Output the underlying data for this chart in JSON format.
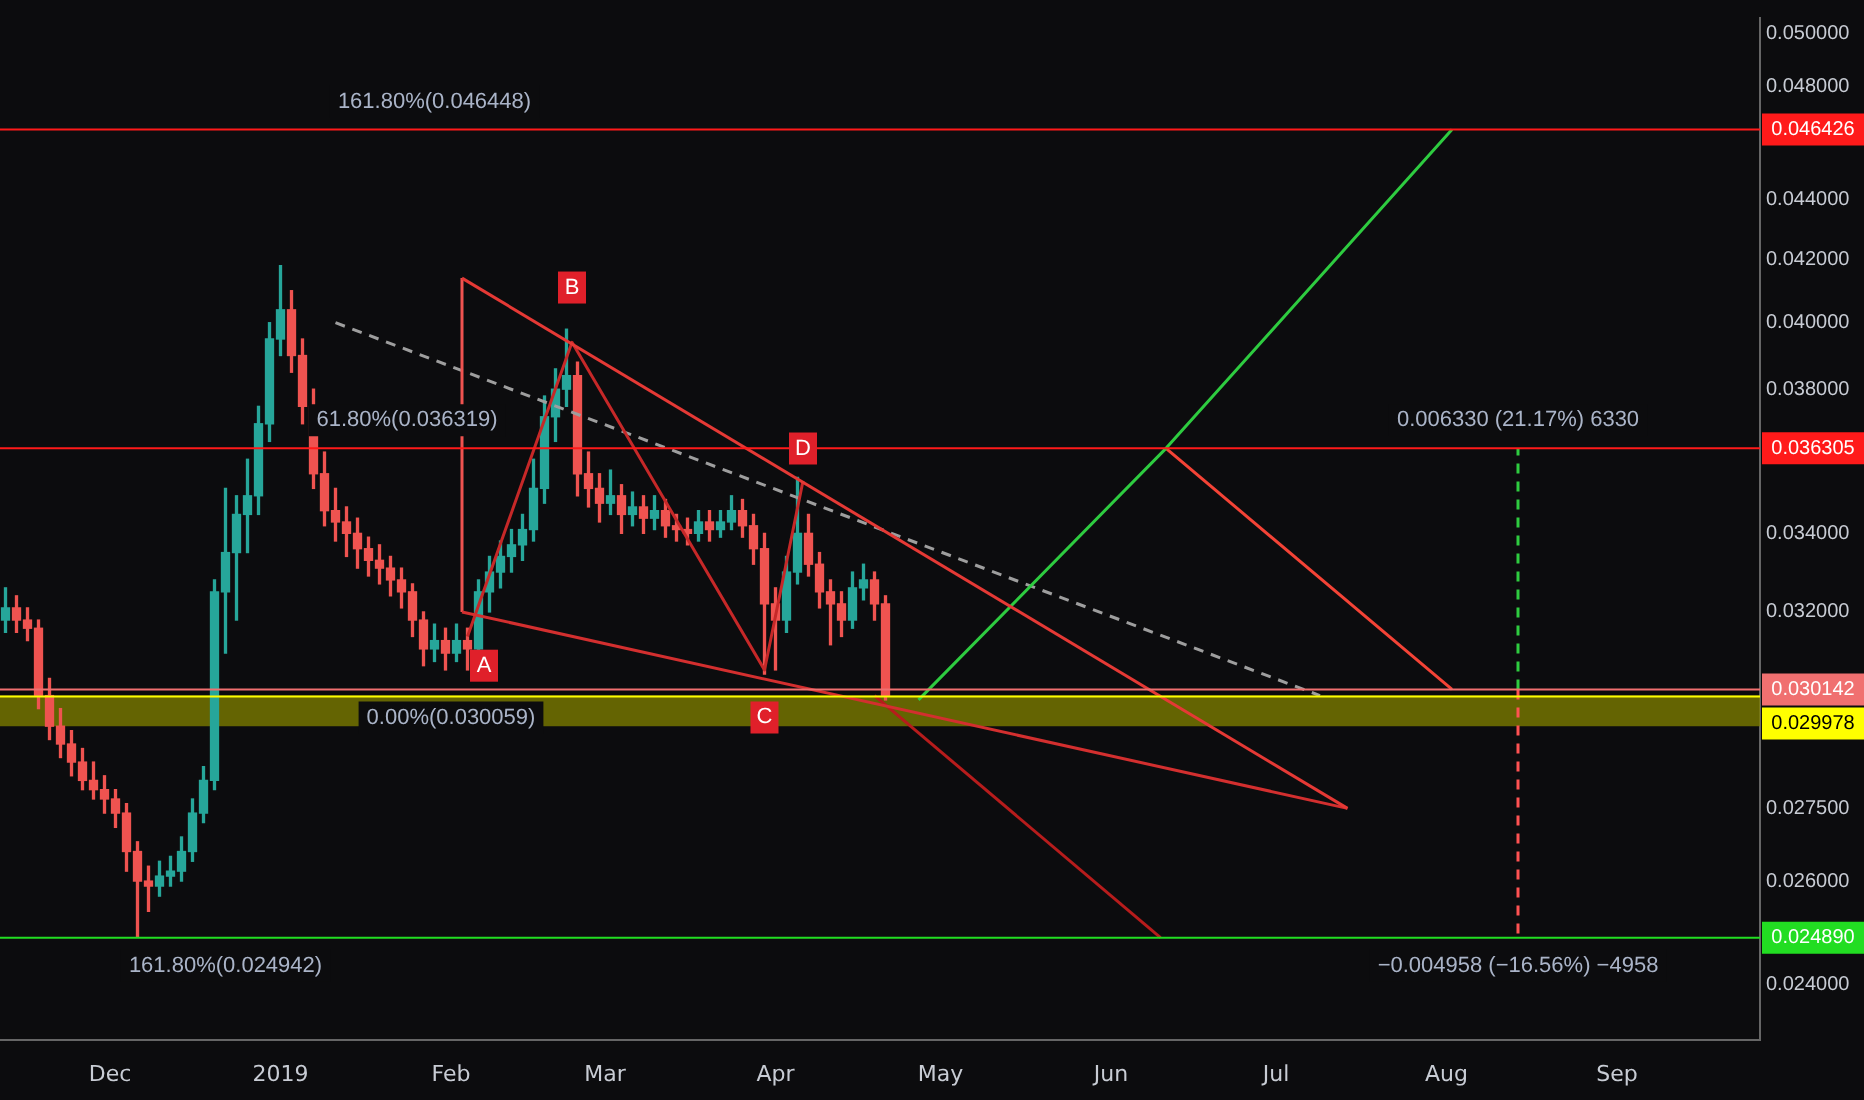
{
  "chart_data": {
    "type": "candlestick",
    "log": true,
    "xlim": [
      "2018-11-11",
      "2019-09-27"
    ],
    "xticks": [
      {
        "value": "2018-12-01",
        "label": "Dec"
      },
      {
        "value": "2019-01-01",
        "label": "2019"
      },
      {
        "value": "2019-02-01",
        "label": "Feb"
      },
      {
        "value": "2019-03-01",
        "label": "Mar"
      },
      {
        "value": "2019-04-01",
        "label": "Apr"
      },
      {
        "value": "2019-05-01",
        "label": "May"
      },
      {
        "value": "2019-06-01",
        "label": "Jun"
      },
      {
        "value": "2019-07-01",
        "label": "Jul"
      },
      {
        "value": "2019-08-01",
        "label": "Aug"
      },
      {
        "value": "2019-09-01",
        "label": "Sep"
      }
    ],
    "ylim": [
      0.023,
      0.0506
    ],
    "yticks": [
      {
        "value": 0.024,
        "label": "0.024000"
      },
      {
        "value": 0.026,
        "label": "0.026000"
      },
      {
        "value": 0.0275,
        "label": "0.027500"
      },
      {
        "value": 0.032,
        "label": "0.032000"
      },
      {
        "value": 0.034,
        "label": "0.034000"
      },
      {
        "value": 0.038,
        "label": "0.038000"
      },
      {
        "value": 0.04,
        "label": "0.040000"
      },
      {
        "value": 0.042,
        "label": "0.042000"
      },
      {
        "value": 0.044,
        "label": "0.044000"
      },
      {
        "value": 0.048,
        "label": "0.048000"
      },
      {
        "value": 0.05,
        "label": "0.050000"
      }
    ],
    "series": [
      {
        "x": [
          "2018-11-12",
          "2018-11-14",
          "2018-11-16",
          "2018-11-18",
          "2018-11-20",
          "2018-11-22",
          "2018-11-24",
          "2018-11-26",
          "2018-11-28",
          "2018-11-30",
          "2018-12-02",
          "2018-12-04",
          "2018-12-06",
          "2018-12-08",
          "2018-12-10",
          "2018-12-12",
          "2018-12-14",
          "2018-12-16",
          "2018-12-18",
          "2018-12-20",
          "2018-12-22",
          "2018-12-24",
          "2018-12-26",
          "2018-12-28",
          "2018-12-30",
          "2019-01-01",
          "2019-01-03",
          "2019-01-05",
          "2019-01-07",
          "2019-01-09",
          "2019-01-11",
          "2019-01-13",
          "2019-01-15",
          "2019-01-17",
          "2019-01-19",
          "2019-01-21",
          "2019-01-23",
          "2019-01-25",
          "2019-01-27",
          "2019-01-29",
          "2019-01-31",
          "2019-02-02",
          "2019-02-04",
          "2019-02-06",
          "2019-02-08",
          "2019-02-10",
          "2019-02-12",
          "2019-02-14",
          "2019-02-16",
          "2019-02-18",
          "2019-02-20",
          "2019-02-22",
          "2019-02-24",
          "2019-02-26",
          "2019-02-28",
          "2019-03-02",
          "2019-03-04",
          "2019-03-06",
          "2019-03-08",
          "2019-03-10",
          "2019-03-12",
          "2019-03-14",
          "2019-03-16",
          "2019-03-18",
          "2019-03-20",
          "2019-03-22",
          "2019-03-24",
          "2019-03-26",
          "2019-03-28",
          "2019-03-30",
          "2019-04-01",
          "2019-04-03",
          "2019-04-05",
          "2019-04-07",
          "2019-04-09",
          "2019-04-11",
          "2019-04-13",
          "2019-04-15",
          "2019-04-17",
          "2019-04-19",
          "2019-04-21"
        ],
        "ohlc": [
          [
            0.0318,
            0.0326,
            0.0315,
            0.0321
          ],
          [
            0.0321,
            0.0324,
            0.0315,
            0.0318
          ],
          [
            0.0318,
            0.0321,
            0.0313,
            0.0316
          ],
          [
            0.0316,
            0.0318,
            0.0297,
            0.03
          ],
          [
            0.03,
            0.0304,
            0.029,
            0.0293
          ],
          [
            0.0293,
            0.0297,
            0.0286,
            0.0289
          ],
          [
            0.0289,
            0.0292,
            0.0282,
            0.0285
          ],
          [
            0.0285,
            0.0288,
            0.0279,
            0.0281
          ],
          [
            0.0281,
            0.0285,
            0.0277,
            0.0279
          ],
          [
            0.0279,
            0.0282,
            0.0274,
            0.0277
          ],
          [
            0.0277,
            0.0279,
            0.0271,
            0.0274
          ],
          [
            0.0274,
            0.0276,
            0.0262,
            0.0266
          ],
          [
            0.0266,
            0.0268,
            0.0249,
            0.026
          ],
          [
            0.026,
            0.0263,
            0.0254,
            0.0259
          ],
          [
            0.0259,
            0.0264,
            0.0257,
            0.0261
          ],
          [
            0.0261,
            0.0265,
            0.0259,
            0.0262
          ],
          [
            0.0262,
            0.0269,
            0.026,
            0.0266
          ],
          [
            0.0266,
            0.0277,
            0.0264,
            0.0274
          ],
          [
            0.0274,
            0.0284,
            0.0272,
            0.0281
          ],
          [
            0.0281,
            0.0328,
            0.0279,
            0.0325
          ],
          [
            0.0325,
            0.0352,
            0.031,
            0.0335
          ],
          [
            0.0335,
            0.035,
            0.0318,
            0.0345
          ],
          [
            0.0345,
            0.036,
            0.0335,
            0.035
          ],
          [
            0.035,
            0.0375,
            0.0345,
            0.037
          ],
          [
            0.037,
            0.04,
            0.0365,
            0.0395
          ],
          [
            0.0395,
            0.0418,
            0.039,
            0.0404
          ],
          [
            0.0404,
            0.041,
            0.0385,
            0.039
          ],
          [
            0.039,
            0.0395,
            0.037,
            0.0375
          ],
          [
            0.0375,
            0.038,
            0.0352,
            0.0356
          ],
          [
            0.0356,
            0.0362,
            0.0342,
            0.0346
          ],
          [
            0.0346,
            0.0352,
            0.0338,
            0.0343
          ],
          [
            0.0343,
            0.0347,
            0.0334,
            0.034
          ],
          [
            0.034,
            0.0344,
            0.0331,
            0.0336
          ],
          [
            0.0336,
            0.0339,
            0.0329,
            0.0333
          ],
          [
            0.0333,
            0.0337,
            0.0327,
            0.0331
          ],
          [
            0.0331,
            0.0334,
            0.0324,
            0.0328
          ],
          [
            0.0328,
            0.0331,
            0.0321,
            0.0325
          ],
          [
            0.0325,
            0.0327,
            0.0314,
            0.0318
          ],
          [
            0.0318,
            0.032,
            0.0307,
            0.0311
          ],
          [
            0.0311,
            0.0317,
            0.0308,
            0.0313
          ],
          [
            0.0313,
            0.0316,
            0.0306,
            0.031
          ],
          [
            0.031,
            0.0317,
            0.0308,
            0.0313
          ],
          [
            0.0313,
            0.0316,
            0.0306,
            0.0311
          ],
          [
            0.0311,
            0.0328,
            0.031,
            0.0325
          ],
          [
            0.0325,
            0.0334,
            0.032,
            0.033
          ],
          [
            0.033,
            0.0338,
            0.0326,
            0.0334
          ],
          [
            0.0334,
            0.0341,
            0.033,
            0.0337
          ],
          [
            0.0337,
            0.0345,
            0.0333,
            0.0341
          ],
          [
            0.0341,
            0.036,
            0.0338,
            0.0352
          ],
          [
            0.0352,
            0.0378,
            0.0348,
            0.0372
          ],
          [
            0.0372,
            0.0386,
            0.0365,
            0.038
          ],
          [
            0.038,
            0.0398,
            0.0375,
            0.0384
          ],
          [
            0.0384,
            0.0388,
            0.035,
            0.0356
          ],
          [
            0.0356,
            0.0362,
            0.0347,
            0.0352
          ],
          [
            0.0352,
            0.0356,
            0.0343,
            0.0348
          ],
          [
            0.0348,
            0.0357,
            0.0345,
            0.035
          ],
          [
            0.035,
            0.0353,
            0.034,
            0.0345
          ],
          [
            0.0345,
            0.0351,
            0.0342,
            0.0347
          ],
          [
            0.0347,
            0.035,
            0.034,
            0.0344
          ],
          [
            0.0344,
            0.035,
            0.0341,
            0.0346
          ],
          [
            0.0346,
            0.0349,
            0.0339,
            0.0342
          ],
          [
            0.0342,
            0.0345,
            0.0338,
            0.0341
          ],
          [
            0.0341,
            0.0344,
            0.0337,
            0.034
          ],
          [
            0.034,
            0.0346,
            0.0338,
            0.0343
          ],
          [
            0.0343,
            0.0346,
            0.0338,
            0.0341
          ],
          [
            0.0341,
            0.0346,
            0.0339,
            0.0343
          ],
          [
            0.0343,
            0.035,
            0.0341,
            0.0346
          ],
          [
            0.0346,
            0.0349,
            0.0339,
            0.0342
          ],
          [
            0.0342,
            0.0345,
            0.0332,
            0.0336
          ],
          [
            0.0336,
            0.034,
            0.0305,
            0.0322
          ],
          [
            0.0322,
            0.0326,
            0.0306,
            0.0318
          ],
          [
            0.0318,
            0.0334,
            0.0315,
            0.033
          ],
          [
            0.033,
            0.0355,
            0.0327,
            0.034
          ],
          [
            0.034,
            0.0345,
            0.0329,
            0.0332
          ],
          [
            0.0332,
            0.0335,
            0.0321,
            0.0325
          ],
          [
            0.0325,
            0.0328,
            0.0312,
            0.0322
          ],
          [
            0.0322,
            0.0325,
            0.0314,
            0.0318
          ],
          [
            0.0318,
            0.033,
            0.0316,
            0.0326
          ],
          [
            0.0326,
            0.0332,
            0.0323,
            0.0328
          ],
          [
            0.0328,
            0.033,
            0.0318,
            0.0322
          ],
          [
            0.0322,
            0.0324,
            0.0299,
            0.03
          ]
        ],
        "colors": [
          "#26a69a",
          "#ef5350",
          "#ef5350",
          "#ef5350",
          "#ef5350",
          "#ef5350",
          "#ef5350",
          "#ef5350",
          "#ef5350",
          "#ef5350",
          "#ef5350",
          "#ef5350",
          "#ef5350",
          "#ef5350",
          "#26a69a",
          "#26a69a",
          "#26a69a",
          "#26a69a",
          "#26a69a",
          "#26a69a",
          "#26a69a",
          "#26a69a",
          "#26a69a",
          "#26a69a",
          "#26a69a",
          "#26a69a",
          "#ef5350",
          "#ef5350",
          "#ef5350",
          "#ef5350",
          "#ef5350",
          "#ef5350",
          "#ef5350",
          "#ef5350",
          "#ef5350",
          "#ef5350",
          "#ef5350",
          "#ef5350",
          "#ef5350",
          "#26a69a",
          "#ef5350",
          "#26a69a",
          "#ef5350",
          "#26a69a",
          "#26a69a",
          "#26a69a",
          "#26a69a",
          "#26a69a",
          "#26a69a",
          "#26a69a",
          "#26a69a",
          "#26a69a",
          "#ef5350",
          "#ef5350",
          "#ef5350",
          "#26a69a",
          "#ef5350",
          "#26a69a",
          "#ef5350",
          "#26a69a",
          "#ef5350",
          "#ef5350",
          "#ef5350",
          "#26a69a",
          "#ef5350",
          "#26a69a",
          "#26a69a",
          "#ef5350",
          "#ef5350",
          "#ef5350",
          "#ef5350",
          "#26a69a",
          "#26a69a",
          "#ef5350",
          "#ef5350",
          "#ef5350",
          "#ef5350",
          "#26a69a",
          "#26a69a",
          "#ef5350",
          "#ef5350"
        ]
      },
      {
        "type": "line",
        "color": "#e53935",
        "x": [
          "2019-02-03",
          "2019-07-14"
        ],
        "values": [
          0.0414,
          0.0275
        ]
      },
      {
        "type": "line",
        "color": "#d32f2f",
        "x": [
          "2019-02-03",
          "2019-07-14"
        ],
        "values": [
          0.032,
          0.0275
        ]
      },
      {
        "type": "line",
        "color": "#ef5350",
        "x": [
          "2019-02-03",
          "2019-02-03"
        ],
        "values": [
          0.032,
          0.0414
        ]
      },
      {
        "type": "line",
        "color": "#c62828",
        "x": [
          "2019-02-04",
          "2019-02-23",
          "2019-03-30",
          "2019-04-06"
        ],
        "values": [
          0.0314,
          0.0394,
          0.0306,
          0.0354
        ]
      },
      {
        "type": "line",
        "color": "#2ecc40",
        "x": [
          "2019-04-27",
          "2019-06-11",
          "2019-08-02"
        ],
        "values": [
          0.0299,
          0.036305,
          0.046426
        ]
      },
      {
        "type": "line",
        "color": "#f44336",
        "x": [
          "2019-06-11",
          "2019-08-02"
        ],
        "values": [
          0.036305,
          0.030142
        ]
      },
      {
        "type": "line",
        "color": "#b71c1c",
        "x": [
          "2019-04-19",
          "2019-06-10"
        ],
        "values": [
          0.03,
          0.02489
        ]
      },
      {
        "type": "line",
        "color": "#9e9e9e",
        "line_style": "dashed",
        "x": [
          "2019-01-11",
          "2019-07-09"
        ],
        "values": [
          0.04,
          0.03
        ]
      },
      {
        "type": "line",
        "color": "#2ecc40",
        "line_style": "dashed",
        "x": [
          "2019-08-14",
          "2019-08-14"
        ],
        "values": [
          0.030142,
          0.036305
        ]
      },
      {
        "type": "line",
        "color": "#ff5252",
        "line_style": "dashed",
        "x": [
          "2019-08-14",
          "2019-08-14"
        ],
        "values": [
          0.030142,
          0.02489
        ]
      }
    ],
    "ref_lines": [
      {
        "axis": "y",
        "value": 0.046426,
        "label": "0.046426",
        "color": "#ff1a1a"
      },
      {
        "axis": "y",
        "value": 0.036305,
        "label": "0.036305",
        "color": "#ff1a1a"
      },
      {
        "axis": "y",
        "value": 0.030142,
        "label": "0.030142",
        "color": "#f07070"
      },
      {
        "axis": "y",
        "value": 0.029978,
        "label": "0.029978",
        "color": "#ffff00"
      },
      {
        "axis": "y",
        "value": 0.02489,
        "label": "0.024890",
        "color": "#22dd22"
      }
    ],
    "bands": [
      {
        "axis": "y",
        "from": 0.0293,
        "to": 0.03,
        "color": "#7a7a00"
      }
    ],
    "annotations": [
      {
        "text": "A",
        "x": "2019-02-07",
        "y": 0.0307
      },
      {
        "text": "B",
        "x": "2019-02-23",
        "y": 0.0411
      },
      {
        "text": "C",
        "x": "2019-03-30",
        "y": 0.0295
      },
      {
        "text": "D",
        "x": "2019-04-06",
        "y": 0.0363
      },
      {
        "text": "161.80%(0.046448)",
        "x": "2019-01-29",
        "y": 0.046426
      },
      {
        "text": "61.80%(0.036319)",
        "x": "2019-01-24",
        "y": 0.036305
      },
      {
        "text": "0.00%(0.030059)",
        "x": "2019-02-01",
        "y": 0.030142
      },
      {
        "text": "161.80%(0.024942)",
        "x": "2018-12-22",
        "y": 0.02489
      },
      {
        "text": "0.006330 (21.17%) 6330",
        "x": "2019-08-14",
        "y": 0.036305
      },
      {
        "text": "−0.004958 (−16.56%) −4958",
        "x": "2019-08-14",
        "y": 0.02489
      }
    ]
  }
}
